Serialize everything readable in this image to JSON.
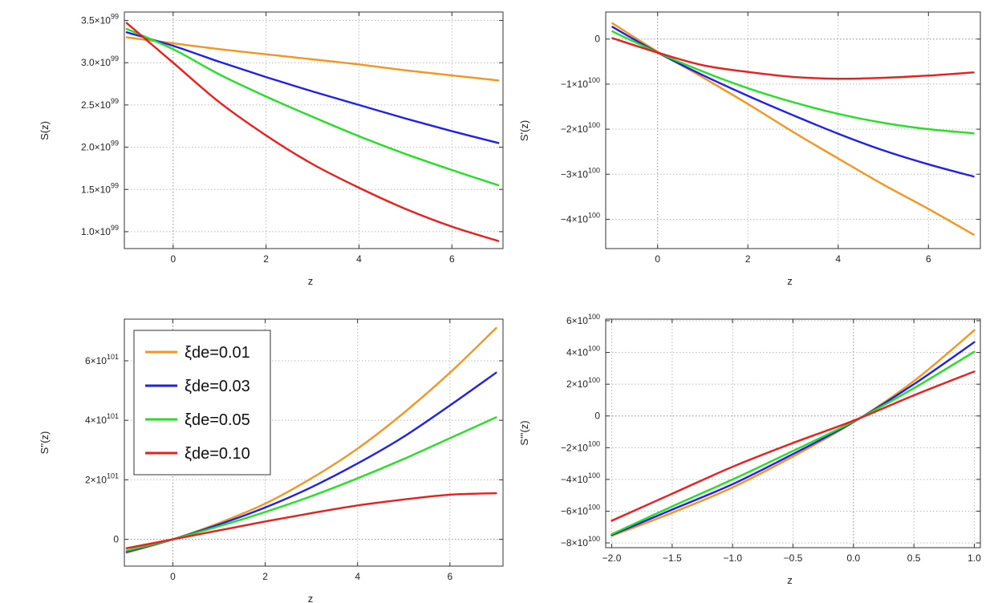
{
  "legend": [
    "ξde=0.01",
    "ξde=0.03",
    "ξde=0.05",
    "ξde=0.10"
  ],
  "colors": [
    "#f7941d",
    "#1f1fef",
    "#22e022",
    "#ee1c1c"
  ],
  "chart_data": [
    {
      "type": "line",
      "title": "",
      "xlabel": "z",
      "ylabel": "S(z)",
      "xlim": [
        -1.05,
        7.1
      ],
      "ylim": [
        0.8,
        3.6
      ],
      "x_ticks": [
        {
          "v": 0,
          "label": "0"
        },
        {
          "v": 2,
          "label": "2"
        },
        {
          "v": 4,
          "label": "4"
        },
        {
          "v": 6,
          "label": "6"
        }
      ],
      "y_ticks": [
        {
          "v": 1.0,
          "m": "1.0",
          "e": "99"
        },
        {
          "v": 1.5,
          "m": "1.5",
          "e": "99"
        },
        {
          "v": 2.0,
          "m": "2.0",
          "e": "99"
        },
        {
          "v": 2.5,
          "m": "2.5",
          "e": "99"
        },
        {
          "v": 3.0,
          "m": "3.0",
          "e": "99"
        },
        {
          "v": 3.5,
          "m": "3.5",
          "e": "99"
        }
      ],
      "x": [
        -1,
        0,
        1,
        2,
        3,
        4,
        5,
        6,
        7
      ],
      "series": [
        {
          "name": "ξde=0.01",
          "values": [
            3.3,
            3.23,
            3.16,
            3.1,
            3.04,
            2.98,
            2.91,
            2.85,
            2.79
          ]
        },
        {
          "name": "ξde=0.03",
          "values": [
            3.36,
            3.2,
            3.01,
            2.83,
            2.66,
            2.5,
            2.34,
            2.19,
            2.05
          ]
        },
        {
          "name": "ξde=0.05",
          "values": [
            3.4,
            3.16,
            2.86,
            2.6,
            2.36,
            2.13,
            1.92,
            1.73,
            1.55
          ]
        },
        {
          "name": "ξde=0.10",
          "values": [
            3.47,
            3.0,
            2.53,
            2.14,
            1.8,
            1.52,
            1.27,
            1.06,
            0.89
          ]
        }
      ]
    },
    {
      "type": "line",
      "title": "",
      "xlabel": "z",
      "ylabel": "S'(z)",
      "xlim": [
        -1.15,
        7.15
      ],
      "ylim": [
        -4.65,
        0.6
      ],
      "x_ticks": [
        {
          "v": 0,
          "label": "0"
        },
        {
          "v": 2,
          "label": "2"
        },
        {
          "v": 4,
          "label": "4"
        },
        {
          "v": 6,
          "label": "6"
        }
      ],
      "y_ticks": [
        {
          "v": 0,
          "m": "0",
          "e": ""
        },
        {
          "v": -1,
          "m": "−1",
          "e": "100"
        },
        {
          "v": -2,
          "m": "−2",
          "e": "100"
        },
        {
          "v": -3,
          "m": "−3",
          "e": "100"
        },
        {
          "v": -4,
          "m": "−4",
          "e": "100"
        }
      ],
      "x": [
        -1,
        0,
        1,
        2,
        3,
        4,
        5,
        6,
        7
      ],
      "series": [
        {
          "name": "ξde=0.01",
          "values": [
            0.35,
            -0.28,
            -0.85,
            -1.44,
            -2.06,
            -2.65,
            -3.23,
            -3.77,
            -4.34
          ]
        },
        {
          "name": "ξde=0.03",
          "values": [
            0.27,
            -0.3,
            -0.8,
            -1.26,
            -1.69,
            -2.1,
            -2.47,
            -2.78,
            -3.05
          ]
        },
        {
          "name": "ξde=0.05",
          "values": [
            0.17,
            -0.3,
            -0.72,
            -1.09,
            -1.4,
            -1.66,
            -1.86,
            -2.0,
            -2.09
          ]
        },
        {
          "name": "ξde=0.10",
          "values": [
            0.02,
            -0.3,
            -0.58,
            -0.73,
            -0.84,
            -0.88,
            -0.86,
            -0.81,
            -0.74
          ]
        }
      ]
    },
    {
      "type": "line",
      "title": "",
      "xlabel": "z",
      "ylabel": "S''(z)",
      "xlim": [
        -1.05,
        7.15
      ],
      "ylim": [
        -0.9,
        7.4
      ],
      "x_ticks": [
        {
          "v": 0,
          "label": "0"
        },
        {
          "v": 2,
          "label": "2"
        },
        {
          "v": 4,
          "label": "4"
        },
        {
          "v": 6,
          "label": "6"
        }
      ],
      "y_ticks": [
        {
          "v": 0,
          "m": "0",
          "e": ""
        },
        {
          "v": 2,
          "m": "2",
          "e": "101"
        },
        {
          "v": 4,
          "m": "4",
          "e": "101"
        },
        {
          "v": 6,
          "m": "6",
          "e": "101"
        }
      ],
      "x": [
        -1,
        0,
        1,
        2,
        3,
        4,
        5,
        6,
        7
      ],
      "series": [
        {
          "name": "ξde=0.01",
          "values": [
            -0.45,
            0.0,
            0.55,
            1.2,
            2.05,
            3.05,
            4.25,
            5.6,
            7.1
          ]
        },
        {
          "name": "ξde=0.03",
          "values": [
            -0.42,
            0.0,
            0.5,
            1.07,
            1.75,
            2.55,
            3.45,
            4.5,
            5.6
          ]
        },
        {
          "name": "ξde=0.05",
          "values": [
            -0.38,
            0.0,
            0.44,
            0.92,
            1.45,
            2.05,
            2.7,
            3.4,
            4.1
          ]
        },
        {
          "name": "ξde=0.10",
          "values": [
            -0.3,
            0.0,
            0.3,
            0.6,
            0.88,
            1.14,
            1.34,
            1.5,
            1.55
          ]
        }
      ]
    },
    {
      "type": "line",
      "title": "",
      "xlabel": "z",
      "ylabel": "S'''(z)",
      "xlim": [
        -2.05,
        1.05
      ],
      "ylim": [
        -8.3,
        6.1
      ],
      "x_ticks": [
        {
          "v": -2.0,
          "label": "−2.0"
        },
        {
          "v": -1.5,
          "label": "−1.5"
        },
        {
          "v": -1.0,
          "label": "−1.0"
        },
        {
          "v": -0.5,
          "label": "−0.5"
        },
        {
          "v": 0.0,
          "label": "0.0"
        },
        {
          "v": 0.5,
          "label": "0.5"
        },
        {
          "v": 1.0,
          "label": "1.0"
        }
      ],
      "y_ticks": [
        {
          "v": 6,
          "m": "6",
          "e": "100"
        },
        {
          "v": 4,
          "m": "4",
          "e": "100"
        },
        {
          "v": 2,
          "m": "2",
          "e": "100"
        },
        {
          "v": 0,
          "m": "0",
          "e": ""
        },
        {
          "v": -2,
          "m": "−2",
          "e": "100"
        },
        {
          "v": -4,
          "m": "−4",
          "e": "100"
        },
        {
          "v": -6,
          "m": "−6",
          "e": "100"
        },
        {
          "v": -8,
          "m": "−8",
          "e": "100"
        }
      ],
      "x": [
        -2.0,
        -1.5,
        -1.0,
        -0.5,
        0.0,
        0.5,
        1.0
      ],
      "series": [
        {
          "name": "ξde=0.01",
          "values": [
            -7.55,
            -6.1,
            -4.5,
            -2.55,
            -0.4,
            2.2,
            5.4
          ]
        },
        {
          "name": "ξde=0.03",
          "values": [
            -7.5,
            -5.9,
            -4.3,
            -2.4,
            -0.38,
            2.0,
            4.65
          ]
        },
        {
          "name": "ξde=0.05",
          "values": [
            -7.45,
            -5.7,
            -4.0,
            -2.2,
            -0.35,
            1.75,
            4.05
          ]
        },
        {
          "name": "ξde=0.10",
          "values": [
            -6.6,
            -4.9,
            -3.2,
            -1.7,
            -0.3,
            1.3,
            2.8
          ]
        }
      ]
    }
  ]
}
